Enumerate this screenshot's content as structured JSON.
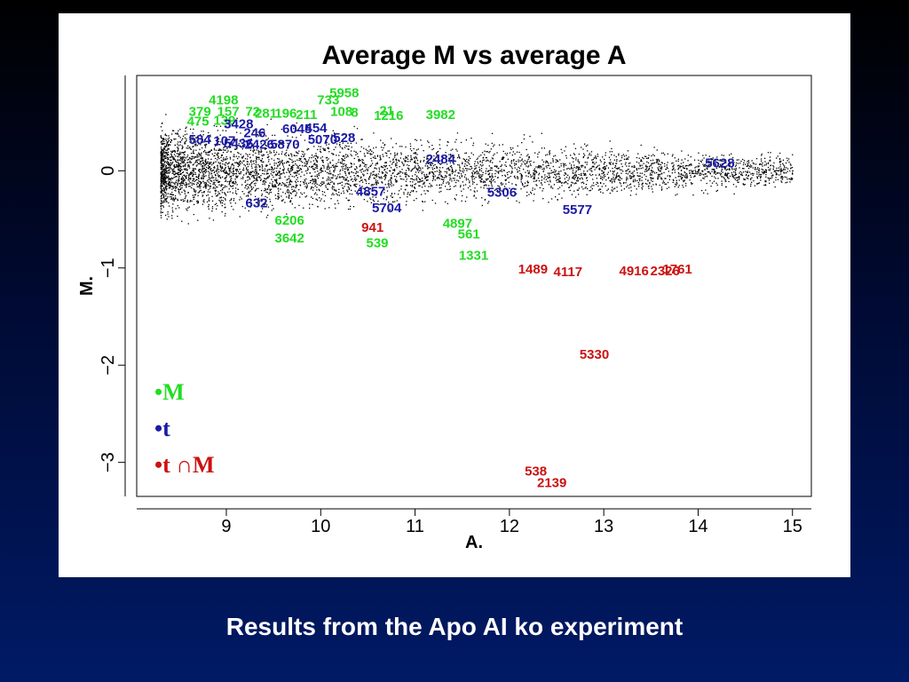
{
  "caption": "Results from the Apo AI ko experiment",
  "colors": {
    "M": "#22dd22",
    "t": "#1a1aa6",
    "tM": "#cc1111",
    "dots": "#000000"
  },
  "chart_data": {
    "type": "scatter",
    "title": "Average M vs average A",
    "xlabel": "A.",
    "ylabel": "M.",
    "xlim": [
      8.05,
      15.2
    ],
    "ylim": [
      -3.35,
      0.98
    ],
    "xticks": [
      9,
      10,
      11,
      12,
      13,
      14,
      15
    ],
    "yticks": [
      0,
      -1,
      -2,
      -3
    ],
    "grid": false,
    "background_points": "dense cloud of ~6000 black points, A from 8.3 to 15.0, M centred near 0",
    "legend": {
      "position": "bottom-left",
      "items": [
        {
          "key": "M",
          "label": "•M"
        },
        {
          "key": "t",
          "label": "•t"
        },
        {
          "key": "tM",
          "label": "•t ∩M"
        }
      ]
    },
    "series": [
      {
        "name": "M",
        "points": [
          {
            "label": "5958",
            "x": 10.25,
            "y": 0.8
          },
          {
            "label": "4198",
            "x": 8.97,
            "y": 0.73
          },
          {
            "label": "733",
            "x": 10.08,
            "y": 0.73
          },
          {
            "label": "379",
            "x": 8.72,
            "y": 0.61
          },
          {
            "label": "157",
            "x": 9.02,
            "y": 0.61
          },
          {
            "label": "72",
            "x": 9.28,
            "y": 0.61
          },
          {
            "label": "281",
            "x": 9.42,
            "y": 0.59
          },
          {
            "label": "196",
            "x": 9.63,
            "y": 0.59
          },
          {
            "label": "211",
            "x": 9.85,
            "y": 0.58
          },
          {
            "label": "108",
            "x": 10.22,
            "y": 0.61
          },
          {
            "label": "21",
            "x": 10.7,
            "y": 0.62
          },
          {
            "label": "8",
            "x": 10.36,
            "y": 0.6
          },
          {
            "label": "1216",
            "x": 10.72,
            "y": 0.57
          },
          {
            "label": "3982",
            "x": 11.27,
            "y": 0.58
          },
          {
            "label": "475",
            "x": 8.7,
            "y": 0.51
          },
          {
            "label": "139",
            "x": 8.98,
            "y": 0.52
          },
          {
            "label": "6206",
            "x": 9.67,
            "y": -0.51
          },
          {
            "label": "3642",
            "x": 9.67,
            "y": -0.69
          },
          {
            "label": "539",
            "x": 10.6,
            "y": -0.74
          },
          {
            "label": "4897",
            "x": 11.45,
            "y": -0.54
          },
          {
            "label": "561",
            "x": 11.57,
            "y": -0.65
          },
          {
            "label": "1331",
            "x": 11.62,
            "y": -0.87
          }
        ]
      },
      {
        "name": "t",
        "points": [
          {
            "label": "3428",
            "x": 9.13,
            "y": 0.48
          },
          {
            "label": "6045",
            "x": 9.75,
            "y": 0.43
          },
          {
            "label": "454",
            "x": 9.95,
            "y": 0.44
          },
          {
            "label": "246",
            "x": 9.3,
            "y": 0.39
          },
          {
            "label": "528",
            "x": 10.25,
            "y": 0.34
          },
          {
            "label": "5070",
            "x": 10.02,
            "y": 0.32
          },
          {
            "label": "584",
            "x": 8.72,
            "y": 0.32
          },
          {
            "label": "107",
            "x": 8.98,
            "y": 0.31
          },
          {
            "label": "5436",
            "x": 9.13,
            "y": 0.28
          },
          {
            "label": "2426",
            "x": 9.35,
            "y": 0.27
          },
          {
            "label": "5870",
            "x": 9.62,
            "y": 0.27
          },
          {
            "label": "2484",
            "x": 11.27,
            "y": 0.12
          },
          {
            "label": "5628",
            "x": 14.23,
            "y": 0.08
          },
          {
            "label": "4857",
            "x": 10.53,
            "y": -0.21
          },
          {
            "label": "5306",
            "x": 11.92,
            "y": -0.22
          },
          {
            "label": "632",
            "x": 9.32,
            "y": -0.33
          },
          {
            "label": "5704",
            "x": 10.7,
            "y": -0.38
          },
          {
            "label": "5577",
            "x": 12.72,
            "y": -0.4
          }
        ]
      },
      {
        "name": "t ∩M",
        "points": [
          {
            "label": "941",
            "x": 10.55,
            "y": -0.58
          },
          {
            "label": "1489",
            "x": 12.25,
            "y": -1.01
          },
          {
            "label": "4117",
            "x": 12.62,
            "y": -1.04
          },
          {
            "label": "4916",
            "x": 13.32,
            "y": -1.03
          },
          {
            "label": "2326",
            "x": 13.65,
            "y": -1.03
          },
          {
            "label": "1761",
            "x": 13.78,
            "y": -1.01
          },
          {
            "label": "5330",
            "x": 12.9,
            "y": -1.89
          },
          {
            "label": "538",
            "x": 12.28,
            "y": -3.09
          },
          {
            "label": "2139",
            "x": 12.45,
            "y": -3.21
          }
        ]
      }
    ]
  }
}
